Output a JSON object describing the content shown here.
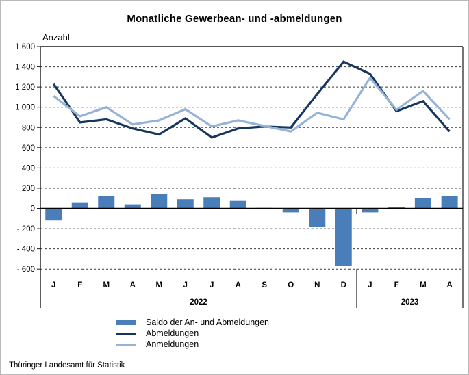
{
  "page": {
    "title": "Monatliche Gewerbean- und -abmeldungen",
    "y_axis_label": "Anzahl",
    "source": "Thüringer Landesamt für Statistik"
  },
  "legend": [
    {
      "type": "bar",
      "label": "Saldo der An- und Abmeldungen",
      "color": "#4a7ebb"
    },
    {
      "type": "line",
      "label": "Abmeldungen",
      "color": "#17365d"
    },
    {
      "type": "line",
      "label": "Anmeldungen",
      "color": "#95b3d7"
    }
  ],
  "chart_data": {
    "type": "combo",
    "title": "Monatliche Gewerbean- und -abmeldungen",
    "ylabel": "Anzahl",
    "xlabel": "",
    "ylim": [
      -600,
      1600
    ],
    "grid": "horizontal-dashed",
    "legend_position": "bottom-left",
    "categories": [
      "J",
      "F",
      "M",
      "A",
      "M",
      "J",
      "J",
      "A",
      "S",
      "O",
      "N",
      "D",
      "J",
      "F",
      "M",
      "A"
    ],
    "year_groups": [
      {
        "label": "2022",
        "months": 12
      },
      {
        "label": "2023",
        "months": 4
      }
    ],
    "y_ticks": [
      1600,
      1400,
      1200,
      1000,
      800,
      600,
      400,
      200,
      0,
      -200,
      -400,
      -600
    ],
    "y_tick_labels": [
      "1 600",
      "1 400",
      "1 200",
      "1 000",
      "800",
      "600",
      "400",
      "200",
      "0",
      "- 200",
      "- 400",
      "- 600"
    ],
    "series": [
      {
        "name": "Saldo der An- und Abmeldungen",
        "type": "bar",
        "color": "#4a7ebb",
        "values": [
          -120,
          60,
          120,
          40,
          140,
          90,
          110,
          80,
          5,
          -40,
          -185,
          -570,
          -40,
          15,
          100,
          120
        ]
      },
      {
        "name": "Abmeldungen",
        "type": "line",
        "color": "#17365d",
        "values": [
          1230,
          850,
          880,
          790,
          730,
          890,
          700,
          790,
          810,
          800,
          1130,
          1450,
          1330,
          960,
          1060,
          760
        ]
      },
      {
        "name": "Anmeldungen",
        "type": "line",
        "color": "#95b3d7",
        "values": [
          1110,
          910,
          1000,
          830,
          870,
          980,
          810,
          870,
          815,
          760,
          945,
          880,
          1290,
          975,
          1160,
          880
        ]
      }
    ]
  }
}
